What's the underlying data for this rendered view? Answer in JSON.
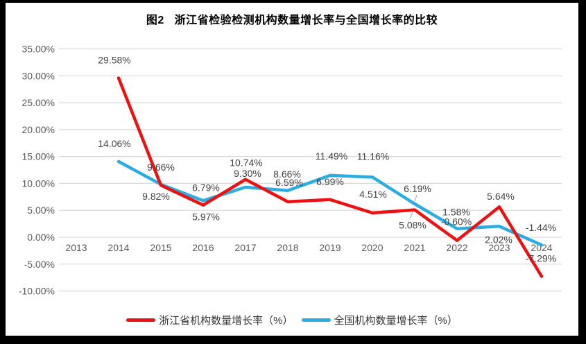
{
  "title": "图2   浙江省检验检测机构数量增长率与全国增长率的比较",
  "chart_data": {
    "type": "line",
    "title": "图2   浙江省检验检测机构数量增长率与全国增长率的比较",
    "categories": [
      "2013",
      "2014",
      "2015",
      "2016",
      "2017",
      "2018",
      "2019",
      "2020",
      "2021",
      "2022",
      "2023",
      "2024"
    ],
    "series": [
      {
        "name": "浙江省机构数量增长率（%）",
        "color": "#ED1111",
        "values": [
          null,
          29.58,
          9.66,
          5.97,
          10.74,
          6.59,
          6.99,
          4.51,
          5.08,
          -0.6,
          5.64,
          -7.29
        ],
        "labels": [
          "",
          "29.58%",
          "9.66%",
          "5.97%",
          "10.74%",
          "6.59%",
          "6.99%",
          "4.51%",
          "5.08%",
          "-0.60%",
          "5.64%",
          "-7.29%"
        ]
      },
      {
        "name": "全国机构数量增长率（%）",
        "color": "#2BACE2",
        "values": [
          null,
          14.06,
          9.82,
          6.79,
          9.3,
          8.66,
          11.49,
          11.16,
          6.19,
          1.58,
          2.02,
          -1.44
        ],
        "labels": [
          "",
          "14.06%",
          "9.82%",
          "6.79%",
          "9.30%",
          "8.66%",
          "11.49%",
          "11.16%",
          "6.19%",
          "1.58%",
          "2.02%",
          "-1.44%"
        ]
      }
    ],
    "xlabel": "",
    "ylabel": "",
    "ylim": [
      -10,
      35
    ],
    "y_ticks": [
      "35.00%",
      "30.00%",
      "25.00%",
      "20.00%",
      "15.00%",
      "10.00%",
      "5.00%",
      "0.00%",
      "-5.00%",
      "-10.00%"
    ],
    "grid": true,
    "legend_position": "bottom",
    "gridline_color": "#D9D9D9",
    "axis_text_color": "#595959",
    "data_label_color": "#404040"
  },
  "legend": {
    "items": [
      {
        "label": "浙江省机构数量增长率（%）",
        "color": "#ED1111"
      },
      {
        "label": "全国机构数量增长率（%）",
        "color": "#2BACE2"
      }
    ]
  }
}
